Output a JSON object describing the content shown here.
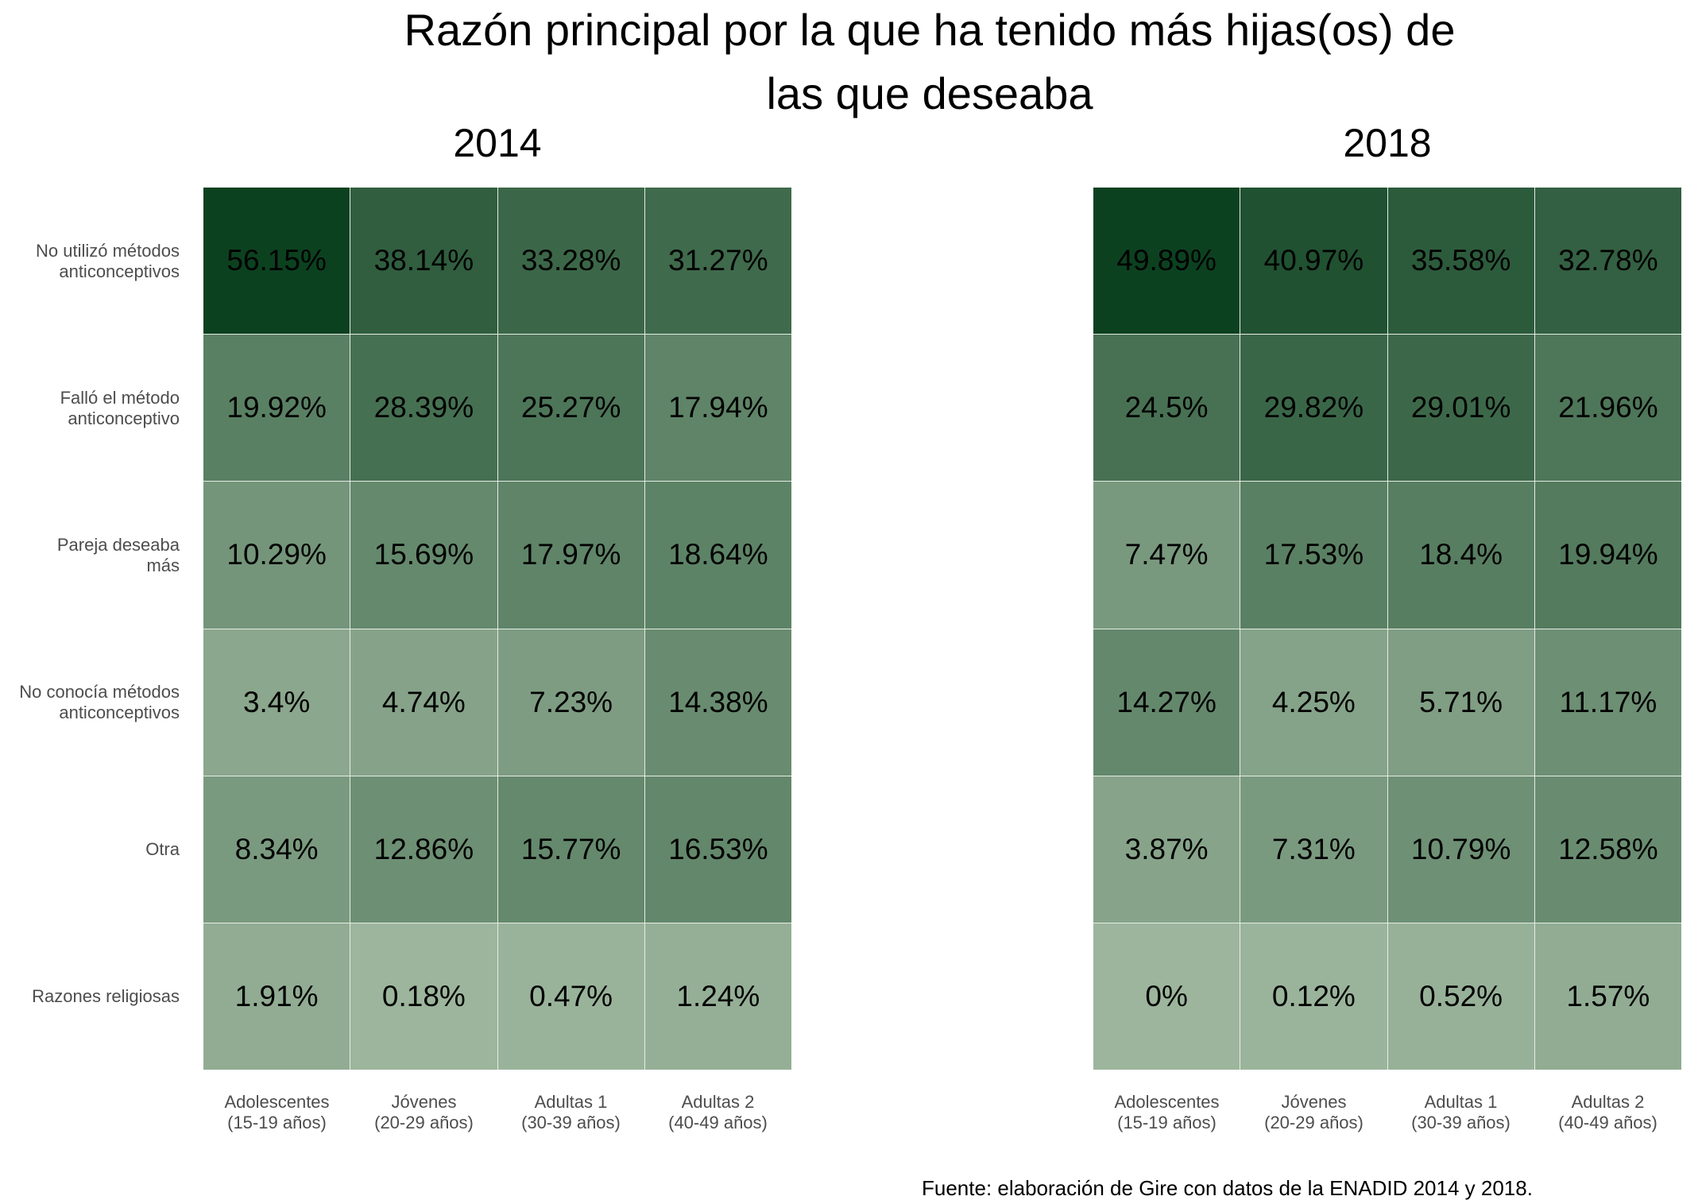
{
  "title_line1": "Razón principal por la que ha tenido más hijas(os) de",
  "title_line2": "las que deseaba",
  "caption": "Fuente: elaboración de Gire con datos de la ENADID 2014 y 2018.",
  "color_scale": {
    "low": "#9cb59c",
    "high": "#0c4120"
  },
  "chart_data": {
    "type": "heatmap",
    "rows": [
      "No utilizó métodos\nanticonceptivos",
      "Falló el método\nanticonceptivo",
      "Pareja deseaba\nmás",
      "No conocía métodos\nanticonceptivos",
      "Otra",
      "Razones religiosas"
    ],
    "columns": [
      "Adolescentes\n(15-19 años)",
      "Jóvenes\n(20-29 años)",
      "Adultas 1\n(30-39 años)",
      "Adultas 2\n(40-49 años)"
    ],
    "panels": [
      {
        "title": "2014",
        "values": [
          [
            56.15,
            38.14,
            33.28,
            31.27
          ],
          [
            19.92,
            28.39,
            25.27,
            17.94
          ],
          [
            10.29,
            15.69,
            17.97,
            18.64
          ],
          [
            3.4,
            4.74,
            7.23,
            14.38
          ],
          [
            8.34,
            12.86,
            15.77,
            16.53
          ],
          [
            1.91,
            0.18,
            0.47,
            1.24
          ]
        ],
        "labels": [
          [
            "56.15%",
            "38.14%",
            "33.28%",
            "31.27%"
          ],
          [
            "19.92%",
            "28.39%",
            "25.27%",
            "17.94%"
          ],
          [
            "10.29%",
            "15.69%",
            "17.97%",
            "18.64%"
          ],
          [
            "3.4%",
            "4.74%",
            "7.23%",
            "14.38%"
          ],
          [
            "8.34%",
            "12.86%",
            "15.77%",
            "16.53%"
          ],
          [
            "1.91%",
            "0.18%",
            "0.47%",
            "1.24%"
          ]
        ]
      },
      {
        "title": "2018",
        "values": [
          [
            49.89,
            40.97,
            35.58,
            32.78
          ],
          [
            24.5,
            29.82,
            29.01,
            21.96
          ],
          [
            7.47,
            17.53,
            18.4,
            19.94
          ],
          [
            14.27,
            4.25,
            5.71,
            11.17
          ],
          [
            3.87,
            7.31,
            10.79,
            12.58
          ],
          [
            0,
            0.12,
            0.52,
            1.57
          ]
        ],
        "labels": [
          [
            "49.89%",
            "40.97%",
            "35.58%",
            "32.78%"
          ],
          [
            "24.5%",
            "29.82%",
            "29.01%",
            "21.96%"
          ],
          [
            "7.47%",
            "17.53%",
            "18.4%",
            "19.94%"
          ],
          [
            "14.27%",
            "4.25%",
            "5.71%",
            "11.17%"
          ],
          [
            "3.87%",
            "7.31%",
            "10.79%",
            "12.58%"
          ],
          [
            "0%",
            "0.12%",
            "0.52%",
            "1.57%"
          ]
        ]
      }
    ],
    "grid": false,
    "legend": "none"
  }
}
